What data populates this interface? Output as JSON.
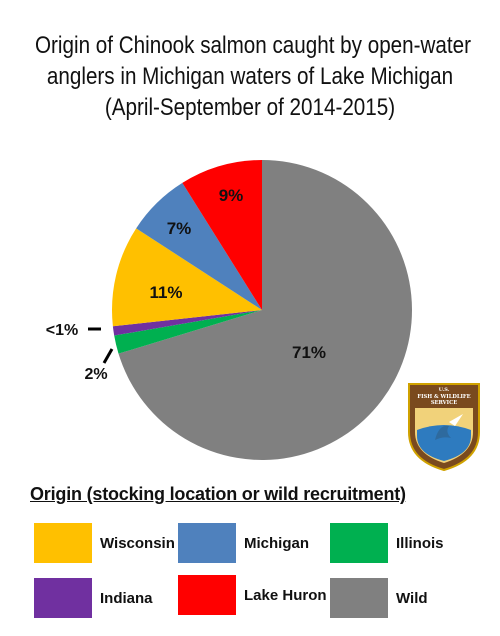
{
  "chart_data": {
    "type": "pie",
    "title_lines": [
      "Origin of Chinook salmon caught by open-water",
      "anglers in Michigan waters of Lake Michigan",
      "(April-September of 2014-2015)"
    ],
    "slices": [
      {
        "name": "Wild",
        "value": 71,
        "label": "71%",
        "color": "#808080"
      },
      {
        "name": "Illinois",
        "value": 2,
        "label": "2%",
        "color": "#00B050"
      },
      {
        "name": "Indiana",
        "value": 1,
        "label": "<1%",
        "color": "#7030A0"
      },
      {
        "name": "Wisconsin",
        "value": 11,
        "label": "11%",
        "color": "#FFC000"
      },
      {
        "name": "Michigan",
        "value": 7,
        "label": "7%",
        "color": "#4F81BD"
      },
      {
        "name": "Lake Huron",
        "value": 9,
        "label": "9%",
        "color": "#FF0000"
      }
    ],
    "start_angle": "top, clockwise",
    "legend": {
      "title": "Origin (stocking location or wild recruitment)",
      "items": [
        {
          "name": "Wisconsin",
          "color": "#FFC000"
        },
        {
          "name": "Michigan",
          "color": "#4F81BD"
        },
        {
          "name": "Illinois",
          "color": "#00B050"
        },
        {
          "name": "Indiana",
          "color": "#7030A0"
        },
        {
          "name": "Lake Huron",
          "color": "#FF0000"
        },
        {
          "name": "Wild",
          "color": "#808080"
        }
      ]
    }
  },
  "logo": {
    "text_top": "U.S.",
    "text_main1": "FISH & WILDLIFE",
    "text_main2": "SERVICE",
    "icon": "usfws-shield-logo-icon"
  }
}
